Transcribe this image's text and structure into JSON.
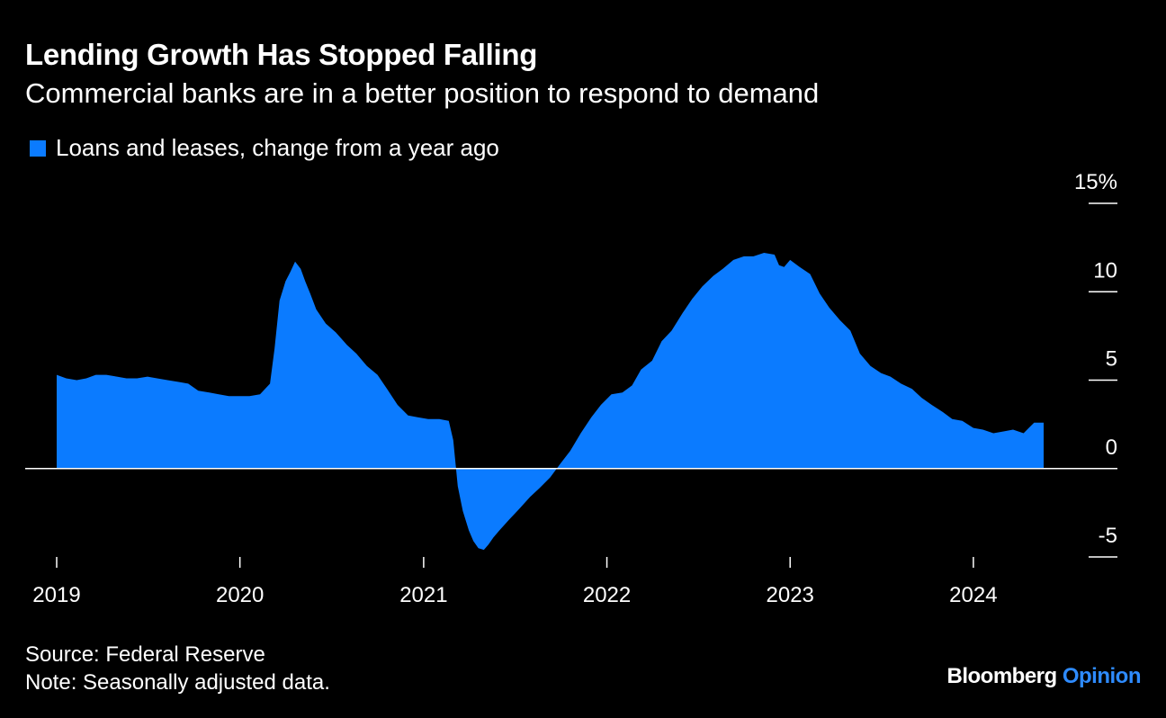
{
  "title": "Lending Growth Has Stopped Falling",
  "subtitle": "Commercial banks are in a better position to respond to demand",
  "source": "Source: Federal Reserve",
  "note": "Note: Seasonally adjusted data.",
  "brand": {
    "name": "Bloomberg",
    "suffix": "Opinion"
  },
  "colors": {
    "background": "#000000",
    "series": "#0b7bff",
    "text": "#ffffff",
    "brand_suffix": "#2e8bff"
  },
  "chart_data": {
    "type": "area",
    "title": "Lending Growth Has Stopped Falling",
    "subtitle": "Commercial banks are in a better position to respond to demand",
    "ylim": [
      -5,
      15
    ],
    "y_ticks": [
      15,
      10,
      5,
      0,
      -5
    ],
    "y_tick_labels": [
      "15%",
      "10",
      "5",
      "0",
      "-5"
    ],
    "y_axis_side": "right",
    "x_ticks": [
      "2019-01-01",
      "2020-01-01",
      "2021-01-01",
      "2022-01-01",
      "2023-01-01",
      "2024-01-01"
    ],
    "x_tick_labels": [
      "2019",
      "2020",
      "2021",
      "2022",
      "2023",
      "2024"
    ],
    "grid": false,
    "legend_position": "top-left",
    "series": [
      {
        "name": "Loans and leases, change from a year ago",
        "color": "#0b7bff",
        "x": [
          "2019-01-01",
          "2019-01-20",
          "2019-02-10",
          "2019-03-01",
          "2019-03-20",
          "2019-04-10",
          "2019-05-01",
          "2019-05-20",
          "2019-06-10",
          "2019-07-01",
          "2019-07-20",
          "2019-08-10",
          "2019-09-01",
          "2019-09-20",
          "2019-10-10",
          "2019-11-01",
          "2019-11-20",
          "2019-12-10",
          "2020-01-01",
          "2020-01-20",
          "2020-02-10",
          "2020-03-01",
          "2020-03-10",
          "2020-03-20",
          "2020-04-01",
          "2020-04-10",
          "2020-04-20",
          "2020-05-01",
          "2020-05-10",
          "2020-05-20",
          "2020-06-01",
          "2020-06-20",
          "2020-07-10",
          "2020-08-01",
          "2020-08-20",
          "2020-09-10",
          "2020-10-01",
          "2020-10-20",
          "2020-11-10",
          "2020-12-01",
          "2020-12-20",
          "2021-01-10",
          "2021-02-01",
          "2021-02-20",
          "2021-03-01",
          "2021-03-10",
          "2021-03-20",
          "2021-04-01",
          "2021-04-10",
          "2021-04-20",
          "2021-05-01",
          "2021-05-10",
          "2021-05-20",
          "2021-06-01",
          "2021-06-20",
          "2021-07-10",
          "2021-08-01",
          "2021-08-20",
          "2021-09-10",
          "2021-10-01",
          "2021-10-20",
          "2021-11-10",
          "2021-12-01",
          "2021-12-20",
          "2022-01-10",
          "2022-02-01",
          "2022-02-20",
          "2022-03-10",
          "2022-04-01",
          "2022-04-20",
          "2022-05-10",
          "2022-06-01",
          "2022-06-20",
          "2022-07-10",
          "2022-08-01",
          "2022-08-20",
          "2022-09-10",
          "2022-10-01",
          "2022-10-20",
          "2022-11-10",
          "2022-12-01",
          "2022-12-10",
          "2022-12-20",
          "2023-01-01",
          "2023-01-20",
          "2023-02-10",
          "2023-03-01",
          "2023-03-20",
          "2023-04-10",
          "2023-05-01",
          "2023-05-20",
          "2023-06-10",
          "2023-07-01",
          "2023-07-20",
          "2023-08-10",
          "2023-09-01",
          "2023-09-20",
          "2023-10-10",
          "2023-11-01",
          "2023-11-20",
          "2023-12-10",
          "2024-01-01",
          "2024-01-20",
          "2024-02-10",
          "2024-03-01",
          "2024-03-20",
          "2024-04-10",
          "2024-05-01",
          "2024-05-20"
        ],
        "values": [
          5.3,
          5.1,
          5.0,
          5.1,
          5.3,
          5.3,
          5.2,
          5.1,
          5.1,
          5.2,
          5.1,
          5.0,
          4.9,
          4.8,
          4.4,
          4.3,
          4.2,
          4.1,
          4.1,
          4.1,
          4.2,
          4.8,
          6.8,
          9.5,
          10.6,
          11.1,
          11.7,
          11.3,
          10.6,
          9.9,
          9.0,
          8.2,
          7.7,
          7.0,
          6.5,
          5.8,
          5.3,
          4.5,
          3.6,
          3.0,
          2.9,
          2.8,
          2.8,
          2.7,
          1.6,
          -1.0,
          -2.4,
          -3.5,
          -4.1,
          -4.5,
          -4.6,
          -4.3,
          -3.9,
          -3.5,
          -2.9,
          -2.3,
          -1.6,
          -1.1,
          -0.5,
          0.3,
          1.0,
          2.0,
          2.9,
          3.6,
          4.2,
          4.3,
          4.7,
          5.6,
          6.1,
          7.2,
          7.8,
          8.8,
          9.6,
          10.3,
          10.9,
          11.3,
          11.8,
          12.0,
          12.0,
          12.2,
          12.1,
          11.5,
          11.4,
          11.8,
          11.4,
          11.0,
          9.9,
          9.1,
          8.4,
          7.8,
          6.5,
          5.8,
          5.4,
          5.2,
          4.8,
          4.5,
          4.0,
          3.6,
          3.2,
          2.8,
          2.7,
          2.3,
          2.2,
          2.0,
          2.1,
          2.2,
          2.0,
          2.6,
          2.6
        ]
      }
    ]
  }
}
